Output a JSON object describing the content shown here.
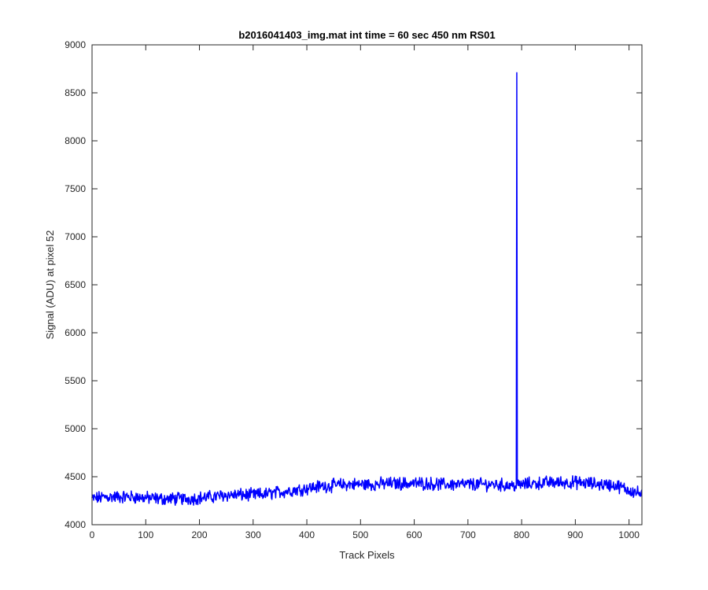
{
  "chart_data": {
    "type": "line",
    "title": "b2016041403_img.mat int time = 60 sec  450 nm RS01",
    "xlabel": "Track Pixels",
    "ylabel": "Signal (ADU) at pixel 52",
    "xlim": [
      0,
      1024
    ],
    "ylim": [
      4000,
      9000
    ],
    "xticks": [
      0,
      100,
      200,
      300,
      400,
      500,
      600,
      700,
      800,
      900,
      1000
    ],
    "yticks": [
      4000,
      4500,
      5000,
      5500,
      6000,
      6500,
      7000,
      7500,
      8000,
      8500,
      9000
    ],
    "grid": false,
    "line_color": "#0000ff",
    "series": [
      {
        "x": [
          0,
          25,
          50,
          75,
          100,
          125,
          150,
          175,
          200,
          225,
          250,
          275,
          300,
          325,
          350,
          375,
          400,
          425,
          450,
          475,
          500,
          525,
          550,
          575,
          600,
          625,
          650,
          675,
          700,
          725,
          750,
          775,
          788,
          791,
          794,
          800,
          825,
          850,
          875,
          900,
          925,
          950,
          975,
          1000,
          1024
        ],
        "y": [
          4270,
          4290,
          4290,
          4290,
          4280,
          4270,
          4270,
          4270,
          4280,
          4290,
          4310,
          4310,
          4310,
          4320,
          4340,
          4360,
          4380,
          4400,
          4410,
          4420,
          4420,
          4420,
          4430,
          4430,
          4430,
          4430,
          4420,
          4420,
          4420,
          4420,
          4420,
          4410,
          4410,
          8710,
          4400,
          4420,
          4430,
          4440,
          4440,
          4440,
          4430,
          4420,
          4410,
          4360,
          4320
        ]
      }
    ]
  }
}
